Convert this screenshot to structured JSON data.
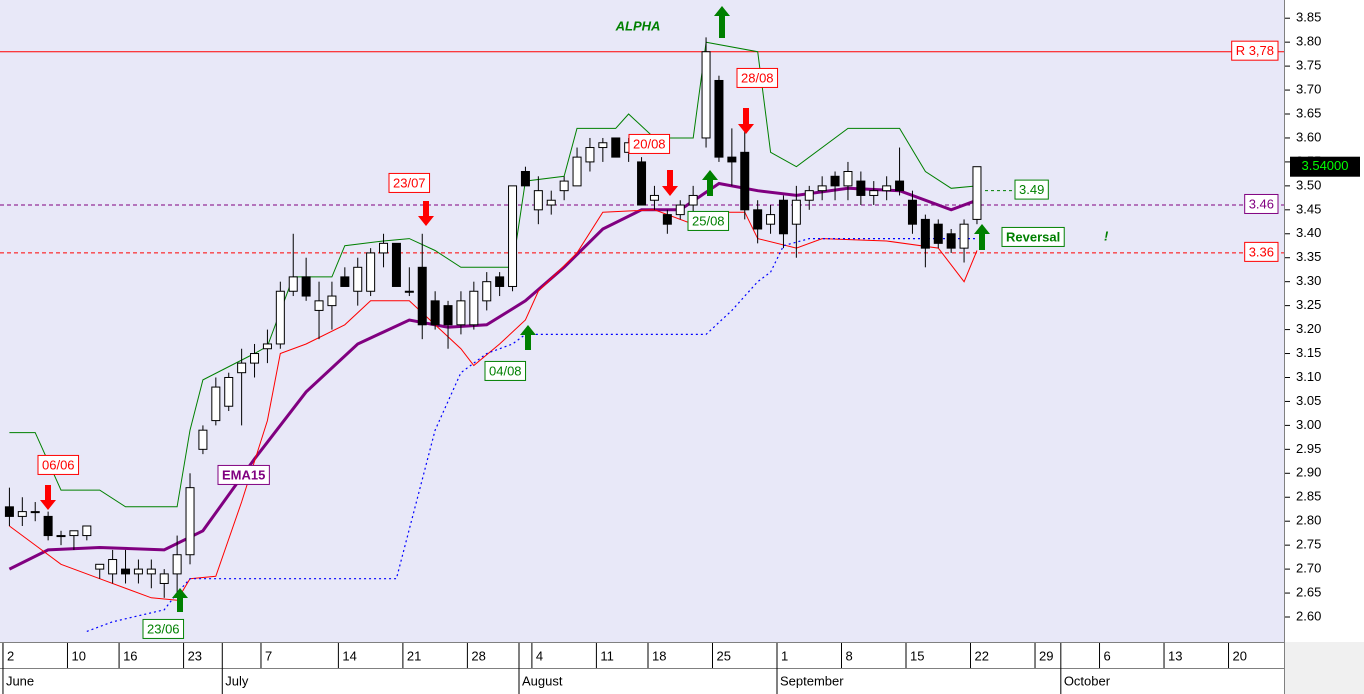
{
  "chart_data": {
    "type": "candlestick",
    "xlim": [
      -0.23,
      99.3
    ],
    "ylim": [
      2.552,
      3.888
    ],
    "xticks": [
      {
        "value": 0,
        "label": "2"
      },
      {
        "value": 5,
        "label": "10"
      },
      {
        "value": 9,
        "label": "16"
      },
      {
        "value": 14,
        "label": "23"
      },
      {
        "value": 20,
        "label": "7"
      },
      {
        "value": 26,
        "label": "14"
      },
      {
        "value": 31,
        "label": "21"
      },
      {
        "value": 36,
        "label": "28"
      },
      {
        "value": 41,
        "label": "4"
      },
      {
        "value": 46,
        "label": "11"
      },
      {
        "value": 50,
        "label": "18"
      },
      {
        "value": 55,
        "label": "25"
      },
      {
        "value": 60,
        "label": "1"
      },
      {
        "value": 65,
        "label": "8"
      },
      {
        "value": 70,
        "label": "15"
      },
      {
        "value": 75,
        "label": "22"
      },
      {
        "value": 80,
        "label": "29"
      },
      {
        "value": 85,
        "label": "6"
      },
      {
        "value": 90,
        "label": "13"
      },
      {
        "value": 95,
        "label": "20"
      }
    ],
    "month_ticks": [
      {
        "value": 0,
        "label": "June"
      },
      {
        "value": 17,
        "label": "July"
      },
      {
        "value": 40,
        "label": "August"
      },
      {
        "value": 60,
        "label": "September"
      },
      {
        "value": 82,
        "label": "October"
      }
    ],
    "yticks": [
      {
        "value": 2.6,
        "label": "2.60"
      },
      {
        "value": 2.65,
        "label": "2.65"
      },
      {
        "value": 2.7,
        "label": "2.70"
      },
      {
        "value": 2.75,
        "label": "2.75"
      },
      {
        "value": 2.8,
        "label": "2.80"
      },
      {
        "value": 2.85,
        "label": "2.85"
      },
      {
        "value": 2.9,
        "label": "2.90"
      },
      {
        "value": 2.95,
        "label": "2.95"
      },
      {
        "value": 3.0,
        "label": "3.00"
      },
      {
        "value": 3.05,
        "label": "3.05"
      },
      {
        "value": 3.1,
        "label": "3.10"
      },
      {
        "value": 3.15,
        "label": "3.15"
      },
      {
        "value": 3.2,
        "label": "3.20"
      },
      {
        "value": 3.25,
        "label": "3.25"
      },
      {
        "value": 3.3,
        "label": "3.30"
      },
      {
        "value": 3.35,
        "label": "3.35"
      },
      {
        "value": 3.4,
        "label": "3.40"
      },
      {
        "value": 3.45,
        "label": "3.45"
      },
      {
        "value": 3.5,
        "label": "3.50"
      },
      {
        "value": 3.55,
        "label": "3.55"
      },
      {
        "value": 3.6,
        "label": "3.60"
      },
      {
        "value": 3.65,
        "label": "3.65"
      },
      {
        "value": 3.7,
        "label": "3.70"
      },
      {
        "value": 3.75,
        "label": "3.75"
      },
      {
        "value": 3.8,
        "label": "3.80"
      },
      {
        "value": 3.85,
        "label": "3.85"
      }
    ],
    "candles": {
      "open": [
        2.83,
        2.81,
        2.82,
        2.81,
        2.77,
        2.77,
        2.77,
        2.7,
        2.69,
        2.7,
        2.69,
        2.69,
        2.67,
        2.69,
        2.73,
        2.95,
        3.01,
        3.04,
        3.11,
        3.13,
        3.16,
        3.17,
        3.28,
        3.31,
        3.24,
        3.25,
        3.31,
        3.28,
        3.28,
        3.36,
        3.38,
        3.28,
        3.33,
        3.26,
        3.25,
        3.21,
        3.21,
        3.26,
        3.31,
        3.29,
        3.53,
        3.45,
        3.46,
        3.49,
        3.5,
        3.55,
        3.58,
        3.6,
        3.57,
        3.55,
        3.47,
        3.44,
        3.44,
        3.46,
        3.6,
        3.72,
        3.56,
        3.57,
        3.45,
        3.42,
        3.47,
        3.42,
        3.47,
        3.49,
        3.52,
        3.5,
        3.51,
        3.48,
        3.49,
        3.51,
        3.47,
        3.43,
        3.42,
        3.4,
        3.37,
        3.43
      ],
      "high": [
        2.87,
        2.85,
        2.84,
        2.82,
        2.78,
        2.78,
        2.79,
        2.71,
        2.74,
        2.74,
        2.72,
        2.72,
        2.7,
        2.77,
        2.9,
        3.0,
        3.1,
        3.11,
        3.16,
        3.17,
        3.2,
        3.3,
        3.4,
        3.35,
        3.3,
        3.3,
        3.33,
        3.35,
        3.37,
        3.4,
        3.38,
        3.33,
        3.4,
        3.28,
        3.26,
        3.28,
        3.3,
        3.32,
        3.32,
        3.5,
        3.54,
        3.52,
        3.49,
        3.52,
        3.58,
        3.6,
        3.6,
        3.6,
        3.6,
        3.56,
        3.5,
        3.45,
        3.47,
        3.5,
        3.81,
        3.73,
        3.62,
        3.63,
        3.47,
        3.46,
        3.48,
        3.5,
        3.5,
        3.52,
        3.53,
        3.55,
        3.53,
        3.51,
        3.52,
        3.58,
        3.49,
        3.44,
        3.43,
        3.41,
        3.43,
        3.54
      ],
      "low": [
        2.79,
        2.79,
        2.8,
        2.76,
        2.75,
        2.74,
        2.76,
        2.68,
        2.67,
        2.67,
        2.67,
        2.66,
        2.64,
        2.65,
        2.71,
        2.94,
        3.0,
        3.03,
        3.0,
        3.1,
        3.13,
        3.16,
        3.27,
        3.26,
        3.18,
        3.2,
        3.29,
        3.25,
        3.27,
        3.33,
        3.29,
        3.27,
        3.18,
        3.2,
        3.16,
        3.19,
        3.2,
        3.24,
        3.27,
        3.28,
        3.5,
        3.42,
        3.44,
        3.47,
        3.5,
        3.53,
        3.55,
        3.56,
        3.55,
        3.46,
        3.45,
        3.4,
        3.43,
        3.44,
        3.58,
        3.55,
        3.5,
        3.43,
        3.38,
        3.4,
        3.37,
        3.35,
        3.45,
        3.47,
        3.47,
        3.47,
        3.46,
        3.46,
        3.47,
        3.48,
        3.4,
        3.33,
        3.37,
        3.36,
        3.34,
        3.42
      ],
      "close": [
        2.81,
        2.82,
        2.82,
        2.77,
        2.77,
        2.78,
        2.79,
        2.71,
        2.72,
        2.69,
        2.7,
        2.7,
        2.69,
        2.73,
        2.87,
        2.99,
        3.08,
        3.1,
        3.13,
        3.15,
        3.17,
        3.28,
        3.31,
        3.27,
        3.26,
        3.27,
        3.29,
        3.33,
        3.36,
        3.38,
        3.29,
        3.28,
        3.21,
        3.21,
        3.21,
        3.26,
        3.28,
        3.3,
        3.29,
        3.5,
        3.5,
        3.49,
        3.47,
        3.51,
        3.56,
        3.58,
        3.59,
        3.56,
        3.59,
        3.46,
        3.48,
        3.42,
        3.46,
        3.48,
        3.78,
        3.56,
        3.55,
        3.45,
        3.41,
        3.44,
        3.4,
        3.47,
        3.49,
        3.5,
        3.5,
        3.53,
        3.48,
        3.49,
        3.5,
        3.49,
        3.42,
        3.37,
        3.38,
        3.37,
        3.42,
        3.54
      ]
    },
    "series": [
      {
        "name": "EMA15",
        "color": "#800080",
        "x": [
          0,
          3,
          7,
          12,
          15,
          19,
          23,
          27,
          31,
          34,
          37,
          40,
          43,
          46,
          49,
          52,
          55,
          58,
          61,
          65,
          69,
          73,
          75
        ],
        "values": [
          2.7,
          2.74,
          2.745,
          2.74,
          2.78,
          2.93,
          3.07,
          3.17,
          3.22,
          3.205,
          3.21,
          3.26,
          3.33,
          3.41,
          3.45,
          3.45,
          3.505,
          3.49,
          3.48,
          3.495,
          3.49,
          3.45,
          3.47
        ]
      },
      {
        "color": "#008000",
        "x": [
          0,
          2,
          4,
          7,
          9,
          13,
          14,
          15,
          19,
          20,
          22,
          25,
          26,
          29,
          31,
          33,
          35,
          39,
          40,
          43,
          44,
          47,
          48,
          50,
          53,
          54,
          58,
          59,
          61,
          65,
          69,
          71,
          73,
          75
        ],
        "values": [
          2.985,
          2.985,
          2.865,
          2.865,
          2.83,
          2.83,
          2.99,
          3.095,
          3.15,
          3.165,
          3.31,
          3.31,
          3.375,
          3.385,
          3.39,
          3.365,
          3.33,
          3.33,
          3.51,
          3.52,
          3.62,
          3.62,
          3.65,
          3.6,
          3.6,
          3.8,
          3.78,
          3.57,
          3.54,
          3.62,
          3.62,
          3.53,
          3.495,
          3.5
        ]
      },
      {
        "color": "#ff0000",
        "x": [
          0,
          2,
          4,
          7,
          11,
          13,
          14,
          16,
          18,
          20,
          21,
          23,
          26,
          28,
          31,
          33,
          35,
          36,
          38,
          40,
          41,
          44,
          46,
          50,
          53,
          55,
          57,
          58,
          61,
          63,
          68,
          72,
          74,
          75
        ],
        "values": [
          2.79,
          2.75,
          2.71,
          2.68,
          2.64,
          2.635,
          2.68,
          2.685,
          2.84,
          3.01,
          3.15,
          3.17,
          3.21,
          3.26,
          3.26,
          3.21,
          3.16,
          3.125,
          3.17,
          3.22,
          3.28,
          3.36,
          3.445,
          3.45,
          3.42,
          3.445,
          3.445,
          3.39,
          3.37,
          3.39,
          3.385,
          3.37,
          3.3,
          3.365
        ]
      },
      {
        "color": "#0000ff",
        "x": [
          6,
          8,
          12,
          13,
          14,
          30,
          33,
          35,
          37,
          39,
          40,
          41,
          54,
          56,
          58,
          59,
          60,
          62,
          75
        ],
        "values": [
          2.57,
          2.59,
          2.615,
          2.65,
          2.68,
          2.68,
          2.99,
          3.11,
          3.15,
          3.17,
          3.19,
          3.19,
          3.19,
          3.24,
          3.3,
          3.32,
          3.375,
          3.39,
          3.39
        ]
      }
    ],
    "levels": [
      {
        "value": 3.78,
        "label": "R 3,78",
        "color": "#ff0000",
        "style": "solid"
      },
      {
        "value": 3.46,
        "color": "#800080",
        "style": "dashed"
      },
      {
        "value": 3.36,
        "color": "#ff0000",
        "style": "dashed"
      }
    ],
    "target": 3.49,
    "last": {
      "value": 3.54,
      "label": "3.54000"
    },
    "title": "ALPHA",
    "annotations": [
      {
        "text": "06/06",
        "color": "#ff0000"
      },
      {
        "text": "23/06",
        "color": "#008000"
      },
      {
        "text": "23/07",
        "color": "#ff0000"
      },
      {
        "text": "04/08",
        "color": "#008000"
      },
      {
        "text": "20/08",
        "color": "#ff0000"
      },
      {
        "text": "25/08",
        "color": "#008000"
      },
      {
        "text": "28/08",
        "color": "#ff0000"
      },
      {
        "text": "Reversal",
        "color": "#008000"
      },
      {
        "text": "!",
        "color": "#008000"
      }
    ]
  }
}
